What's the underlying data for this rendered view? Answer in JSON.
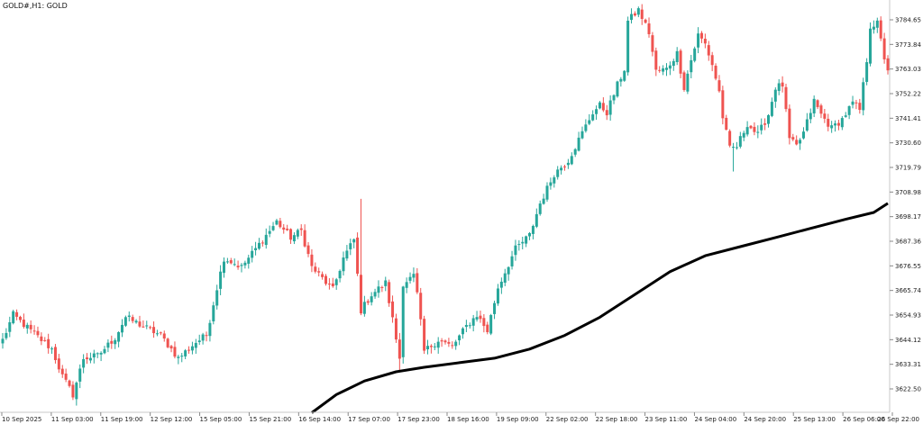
{
  "window": {
    "title": "GOLD#,H1: GOLD"
  },
  "colors": {
    "bull": "#26a69a",
    "bear": "#ef5350",
    "ma": "#000000",
    "axis": "#c8c8c8",
    "background": "#ffffff"
  },
  "chart_data": {
    "type": "candlestick",
    "symbol": "GOLD#",
    "timeframe": "H1",
    "ylim": [
      3612.0,
      3795.0
    ],
    "grid": false,
    "y_ticks": [
      "3784.65",
      "3773.84",
      "3763.03",
      "3752.22",
      "3741.41",
      "3730.60",
      "3719.79",
      "3708.98",
      "3698.17",
      "3687.36",
      "3676.55",
      "3665.74",
      "3654.93",
      "3644.12",
      "3633.31",
      "3622.50"
    ],
    "x_ticks": [
      "10 Sep 2025",
      "11 Sep 03:00",
      "11 Sep 19:00",
      "12 Sep 12:00",
      "15 Sep 05:00",
      "15 Sep 21:00",
      "16 Sep 14:00",
      "17 Sep 07:00",
      "17 Sep 23:00",
      "18 Sep 16:00",
      "19 Sep 09:00",
      "22 Sep 02:00",
      "22 Sep 18:00",
      "23 Sep 11:00",
      "24 Sep 04:00",
      "24 Sep 20:00",
      "25 Sep 13:00",
      "26 Sep 06:00",
      "26 Sep 22:00"
    ],
    "anchors": [
      [
        0,
        3644
      ],
      [
        3,
        3655
      ],
      [
        8,
        3648
      ],
      [
        14,
        3640
      ],
      [
        17,
        3628
      ],
      [
        20,
        3620
      ],
      [
        23,
        3636
      ],
      [
        27,
        3637
      ],
      [
        32,
        3645
      ],
      [
        35,
        3654
      ],
      [
        40,
        3650
      ],
      [
        45,
        3646
      ],
      [
        50,
        3636
      ],
      [
        55,
        3643
      ],
      [
        58,
        3646
      ],
      [
        61,
        3667
      ],
      [
        63,
        3680
      ],
      [
        68,
        3676
      ],
      [
        70,
        3680
      ],
      [
        75,
        3690
      ],
      [
        78,
        3696
      ],
      [
        82,
        3689
      ],
      [
        85,
        3692
      ],
      [
        88,
        3676
      ],
      [
        94,
        3666
      ],
      [
        97,
        3680
      ],
      [
        100,
        3688
      ],
      [
        102,
        3657
      ],
      [
        105,
        3664
      ],
      [
        109,
        3669
      ],
      [
        111,
        3653
      ],
      [
        113,
        3636
      ],
      [
        114,
        3669
      ],
      [
        117,
        3672
      ],
      [
        118,
        3664
      ],
      [
        120,
        3639
      ],
      [
        124,
        3644
      ],
      [
        128,
        3641
      ],
      [
        132,
        3650
      ],
      [
        135,
        3655
      ],
      [
        138,
        3648
      ],
      [
        141,
        3667
      ],
      [
        146,
        3684
      ],
      [
        150,
        3690
      ],
      [
        153,
        3704
      ],
      [
        157,
        3717
      ],
      [
        161,
        3723
      ],
      [
        164,
        3732
      ],
      [
        168,
        3744
      ],
      [
        170,
        3747
      ],
      [
        172,
        3744
      ],
      [
        175,
        3756
      ],
      [
        177,
        3763
      ],
      [
        178,
        3784
      ],
      [
        181,
        3789
      ],
      [
        184,
        3779
      ],
      [
        186,
        3762
      ],
      [
        189,
        3763
      ],
      [
        192,
        3770
      ],
      [
        194,
        3755
      ],
      [
        196,
        3767
      ],
      [
        198,
        3778
      ],
      [
        200,
        3774
      ],
      [
        202,
        3765
      ],
      [
        204,
        3753
      ],
      [
        205,
        3742
      ],
      [
        207,
        3728
      ],
      [
        209,
        3729
      ],
      [
        212,
        3739
      ],
      [
        215,
        3734
      ],
      [
        218,
        3743
      ],
      [
        220,
        3755
      ],
      [
        222,
        3756
      ],
      [
        224,
        3732
      ],
      [
        226,
        3729
      ],
      [
        228,
        3735
      ],
      [
        231,
        3749
      ],
      [
        233,
        3743
      ],
      [
        236,
        3737
      ],
      [
        239,
        3741
      ],
      [
        242,
        3748
      ],
      [
        244,
        3745
      ],
      [
        246,
        3767
      ],
      [
        247,
        3782
      ],
      [
        249,
        3783
      ],
      [
        251,
        3768
      ],
      [
        252,
        3763
      ]
    ],
    "moving_average": [
      [
        88,
        3612
      ],
      [
        95,
        3620
      ],
      [
        103,
        3626
      ],
      [
        112,
        3630
      ],
      [
        120,
        3632
      ],
      [
        130,
        3634
      ],
      [
        140,
        3636
      ],
      [
        150,
        3640
      ],
      [
        160,
        3646
      ],
      [
        170,
        3654
      ],
      [
        180,
        3664
      ],
      [
        190,
        3674
      ],
      [
        200,
        3681
      ],
      [
        210,
        3685
      ],
      [
        220,
        3689
      ],
      [
        230,
        3693
      ],
      [
        240,
        3697
      ],
      [
        248,
        3700
      ],
      [
        252,
        3704
      ]
    ]
  }
}
